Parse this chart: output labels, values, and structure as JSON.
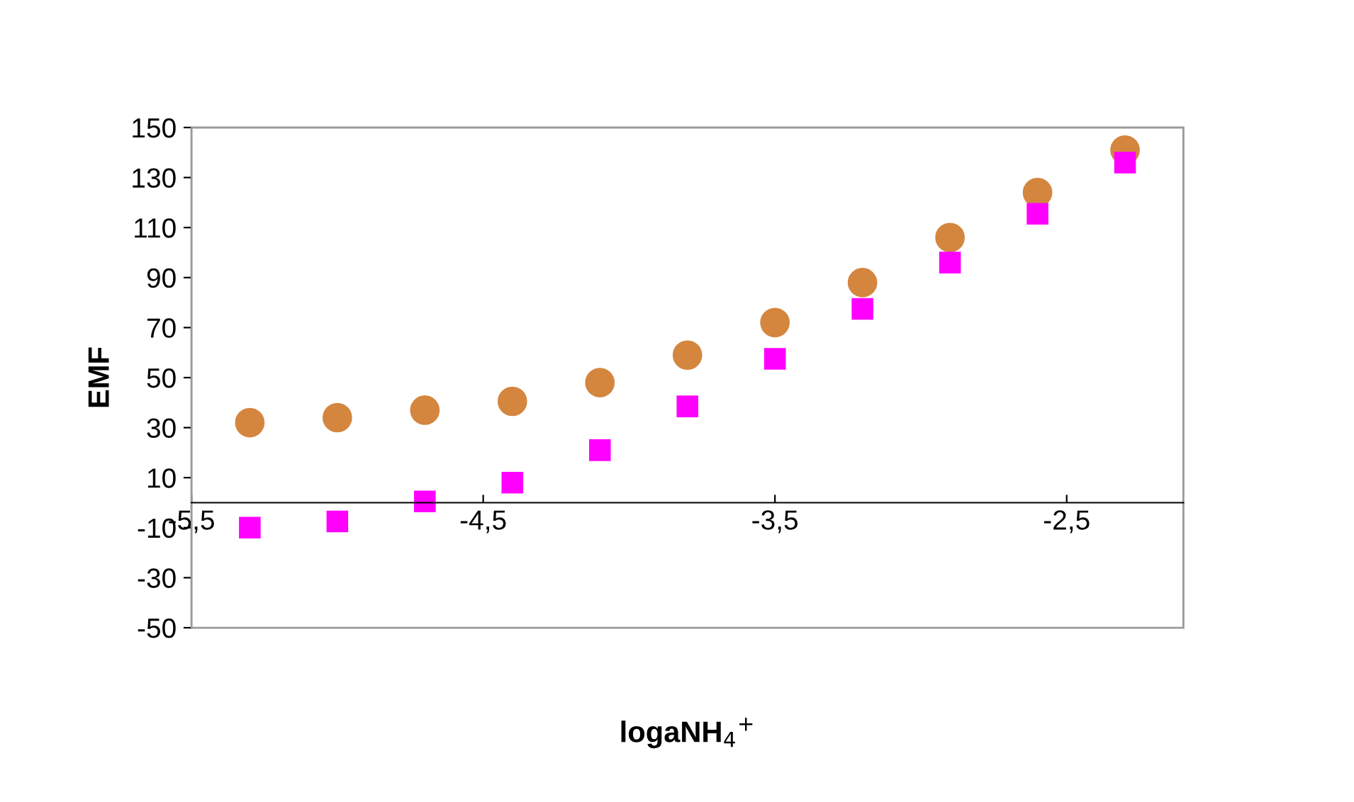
{
  "chart_data": {
    "type": "scatter",
    "xlabel": "logaNH$_{4}$$^{+}$",
    "ylabel": "EMF",
    "x": [
      -5.3,
      -5.0,
      -4.7,
      -4.4,
      -4.1,
      -3.8,
      -3.5,
      -3.2,
      -2.9,
      -2.6,
      -2.3
    ],
    "series": [
      {
        "color": "#d4863f",
        "marker": "circle",
        "values": [
          32,
          34,
          37,
          40.5,
          48,
          59,
          72,
          88,
          106,
          124,
          141
        ]
      },
      {
        "color": "#ff00ff",
        "marker": "square",
        "values": [
          -10,
          -7.5,
          0.5,
          8,
          21,
          38.5,
          57.5,
          77.5,
          96,
          115.5,
          136
        ]
      }
    ],
    "xlim": [
      -5.5,
      -2.1
    ],
    "xticks": [
      {
        "value": -5.5,
        "label": "-5,5"
      },
      {
        "value": -4.5,
        "label": "-4,5"
      },
      {
        "value": -3.5,
        "label": "-3,5"
      },
      {
        "value": -2.5,
        "label": "-2,5"
      }
    ],
    "ylim": [
      -50,
      150
    ],
    "yticks": [
      -50,
      -30,
      -10,
      10,
      30,
      50,
      70,
      90,
      110,
      130,
      150
    ],
    "grid": false,
    "legend": false
  }
}
